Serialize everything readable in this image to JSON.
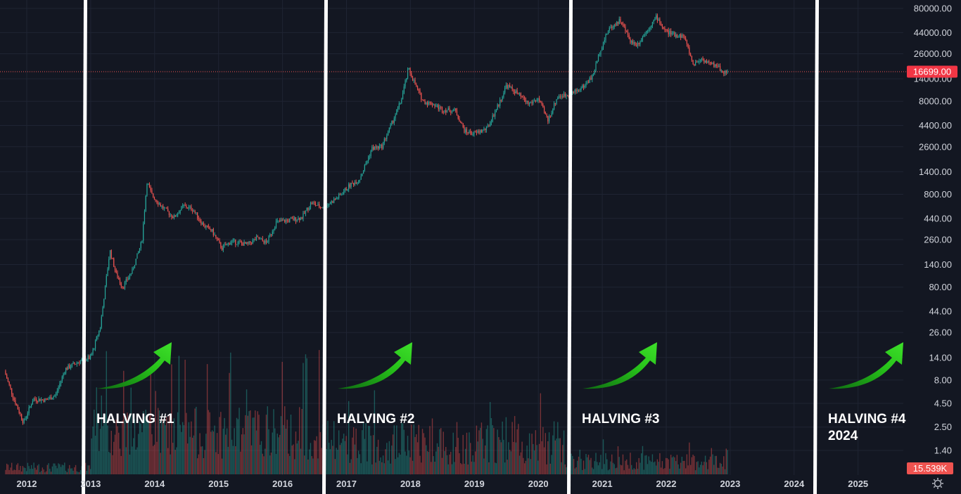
{
  "chart_data": {
    "type": "candlestick",
    "y_scale": "log",
    "ylim": [
      1,
      90000
    ],
    "y_ticks": [
      "80000.00",
      "44000.00",
      "26000.00",
      "14000.00",
      "8000.00",
      "4400.00",
      "2600.00",
      "1400.00",
      "800.00",
      "440.00",
      "260.00",
      "140.00",
      "80.00",
      "44.00",
      "26.00",
      "14.00",
      "8.00",
      "4.50",
      "2.50",
      "1.40"
    ],
    "x_ticks": [
      "2012",
      "2013",
      "2014",
      "2015",
      "2016",
      "2017",
      "2018",
      "2019",
      "2020",
      "2021",
      "2022",
      "2023",
      "2024",
      "2025"
    ],
    "x_range": [
      2011.6,
      2026.4
    ],
    "grid": true,
    "last_price": "16699.00",
    "last_price_value": 16699,
    "volume_label": "15.539K",
    "colors": {
      "up": "#26a69a",
      "down": "#ef5350",
      "background": "#131722",
      "arrow": "#27d11a",
      "halving_line": "#ffffff"
    },
    "halvings": [
      {
        "label": "HALVING #1",
        "year": 2012.9
      },
      {
        "label": "HALVING #2",
        "year": 2016.55
      },
      {
        "label": "HALVING #3",
        "year": 2020.4
      },
      {
        "label": "HALVING #4",
        "sub": "2024",
        "year": 2024.3
      }
    ],
    "price_path": [
      [
        2011.65,
        10
      ],
      [
        2011.8,
        5
      ],
      [
        2011.95,
        2.8
      ],
      [
        2012.1,
        5
      ],
      [
        2012.3,
        4.9
      ],
      [
        2012.45,
        5.5
      ],
      [
        2012.6,
        10.5
      ],
      [
        2012.75,
        12
      ],
      [
        2012.9,
        13.5
      ],
      [
        2013.0,
        14
      ],
      [
        2013.15,
        30
      ],
      [
        2013.3,
        200
      ],
      [
        2013.4,
        110
      ],
      [
        2013.5,
        80
      ],
      [
        2013.65,
        120
      ],
      [
        2013.8,
        250
      ],
      [
        2013.88,
        1100
      ],
      [
        2013.95,
        800
      ],
      [
        2014.1,
        600
      ],
      [
        2014.3,
        450
      ],
      [
        2014.45,
        600
      ],
      [
        2014.6,
        550
      ],
      [
        2014.75,
        380
      ],
      [
        2014.9,
        320
      ],
      [
        2015.05,
        210
      ],
      [
        2015.2,
        250
      ],
      [
        2015.45,
        230
      ],
      [
        2015.6,
        270
      ],
      [
        2015.75,
        240
      ],
      [
        2015.9,
        400
      ],
      [
        2016.1,
        420
      ],
      [
        2016.3,
        450
      ],
      [
        2016.45,
        650
      ],
      [
        2016.6,
        580
      ],
      [
        2016.75,
        650
      ],
      [
        2016.9,
        780
      ],
      [
        2017.05,
        1000
      ],
      [
        2017.2,
        1150
      ],
      [
        2017.4,
        2500
      ],
      [
        2017.55,
        2600
      ],
      [
        2017.7,
        4500
      ],
      [
        2017.85,
        8000
      ],
      [
        2017.97,
        18000
      ],
      [
        2018.1,
        11000
      ],
      [
        2018.2,
        8000
      ],
      [
        2018.35,
        7500
      ],
      [
        2018.5,
        6500
      ],
      [
        2018.7,
        6400
      ],
      [
        2018.85,
        3800
      ],
      [
        2019.0,
        3600
      ],
      [
        2019.2,
        4100
      ],
      [
        2019.4,
        8000
      ],
      [
        2019.5,
        12000
      ],
      [
        2019.65,
        10000
      ],
      [
        2019.85,
        7500
      ],
      [
        2020.0,
        8500
      ],
      [
        2020.15,
        5000
      ],
      [
        2020.3,
        9000
      ],
      [
        2020.5,
        9500
      ],
      [
        2020.7,
        11500
      ],
      [
        2020.85,
        15000
      ],
      [
        2020.97,
        29000
      ],
      [
        2021.1,
        48000
      ],
      [
        2021.28,
        60000
      ],
      [
        2021.45,
        35000
      ],
      [
        2021.55,
        33000
      ],
      [
        2021.7,
        47000
      ],
      [
        2021.85,
        65000
      ],
      [
        2021.97,
        47000
      ],
      [
        2022.1,
        42000
      ],
      [
        2022.28,
        40000
      ],
      [
        2022.42,
        20000
      ],
      [
        2022.55,
        23000
      ],
      [
        2022.7,
        20000
      ],
      [
        2022.8,
        19500
      ],
      [
        2022.88,
        16500
      ],
      [
        2022.97,
        16699
      ]
    ]
  }
}
